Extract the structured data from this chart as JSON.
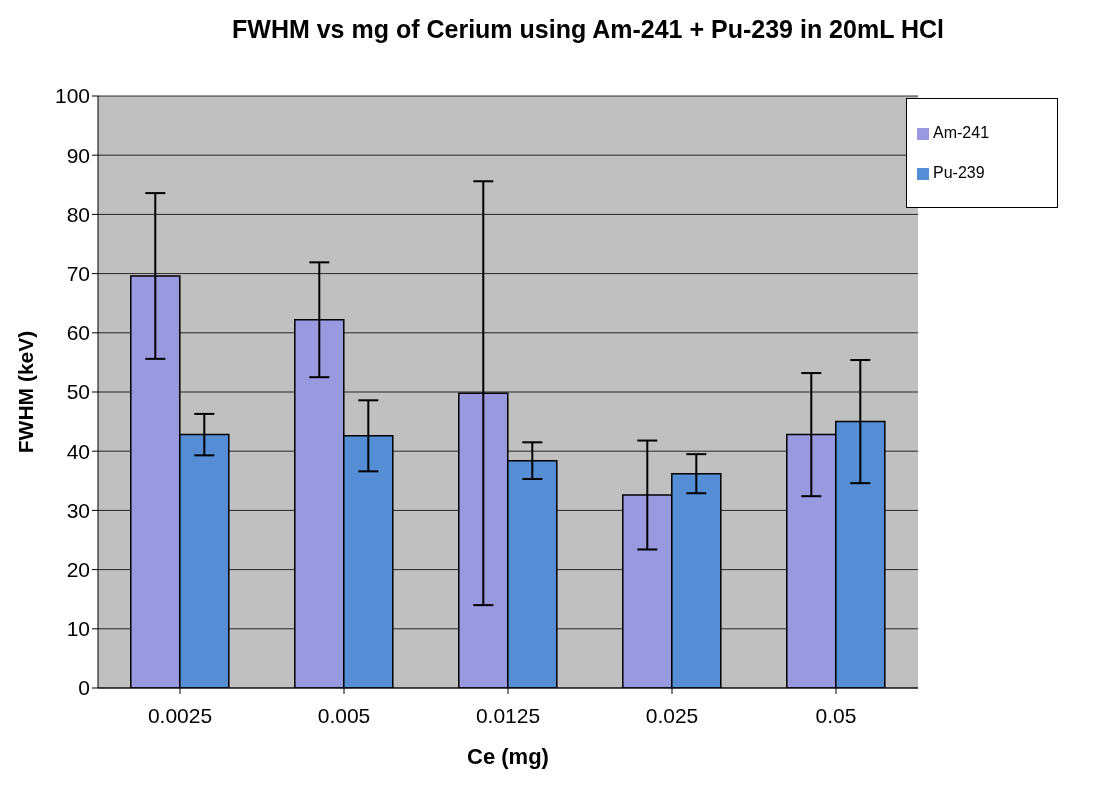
{
  "chart_data": {
    "type": "bar",
    "title": "FWHM vs mg of Cerium using Am-241 + Pu-239 in 20mL HCl",
    "xlabel": "Ce (mg)",
    "ylabel": "FWHM (keV)",
    "categories": [
      "0.0025",
      "0.005",
      "0.0125",
      "0.025",
      "0.05"
    ],
    "series": [
      {
        "name": "Am-241",
        "color": "#9999e0",
        "values": [
          69.6,
          62.2,
          49.8,
          32.6,
          42.8
        ],
        "errors": [
          14,
          9.7,
          35.8,
          9.2,
          10.4
        ]
      },
      {
        "name": "Pu-239",
        "color": "#558ed5",
        "values": [
          42.8,
          42.6,
          38.4,
          36.2,
          45.0
        ],
        "errors": [
          3.5,
          6,
          3.1,
          3.3,
          10.4
        ]
      }
    ],
    "ylim": [
      0,
      100
    ],
    "yticks": [
      0,
      10,
      20,
      30,
      40,
      50,
      60,
      70,
      80,
      90,
      100
    ],
    "grid": "y",
    "legend": "top right"
  }
}
